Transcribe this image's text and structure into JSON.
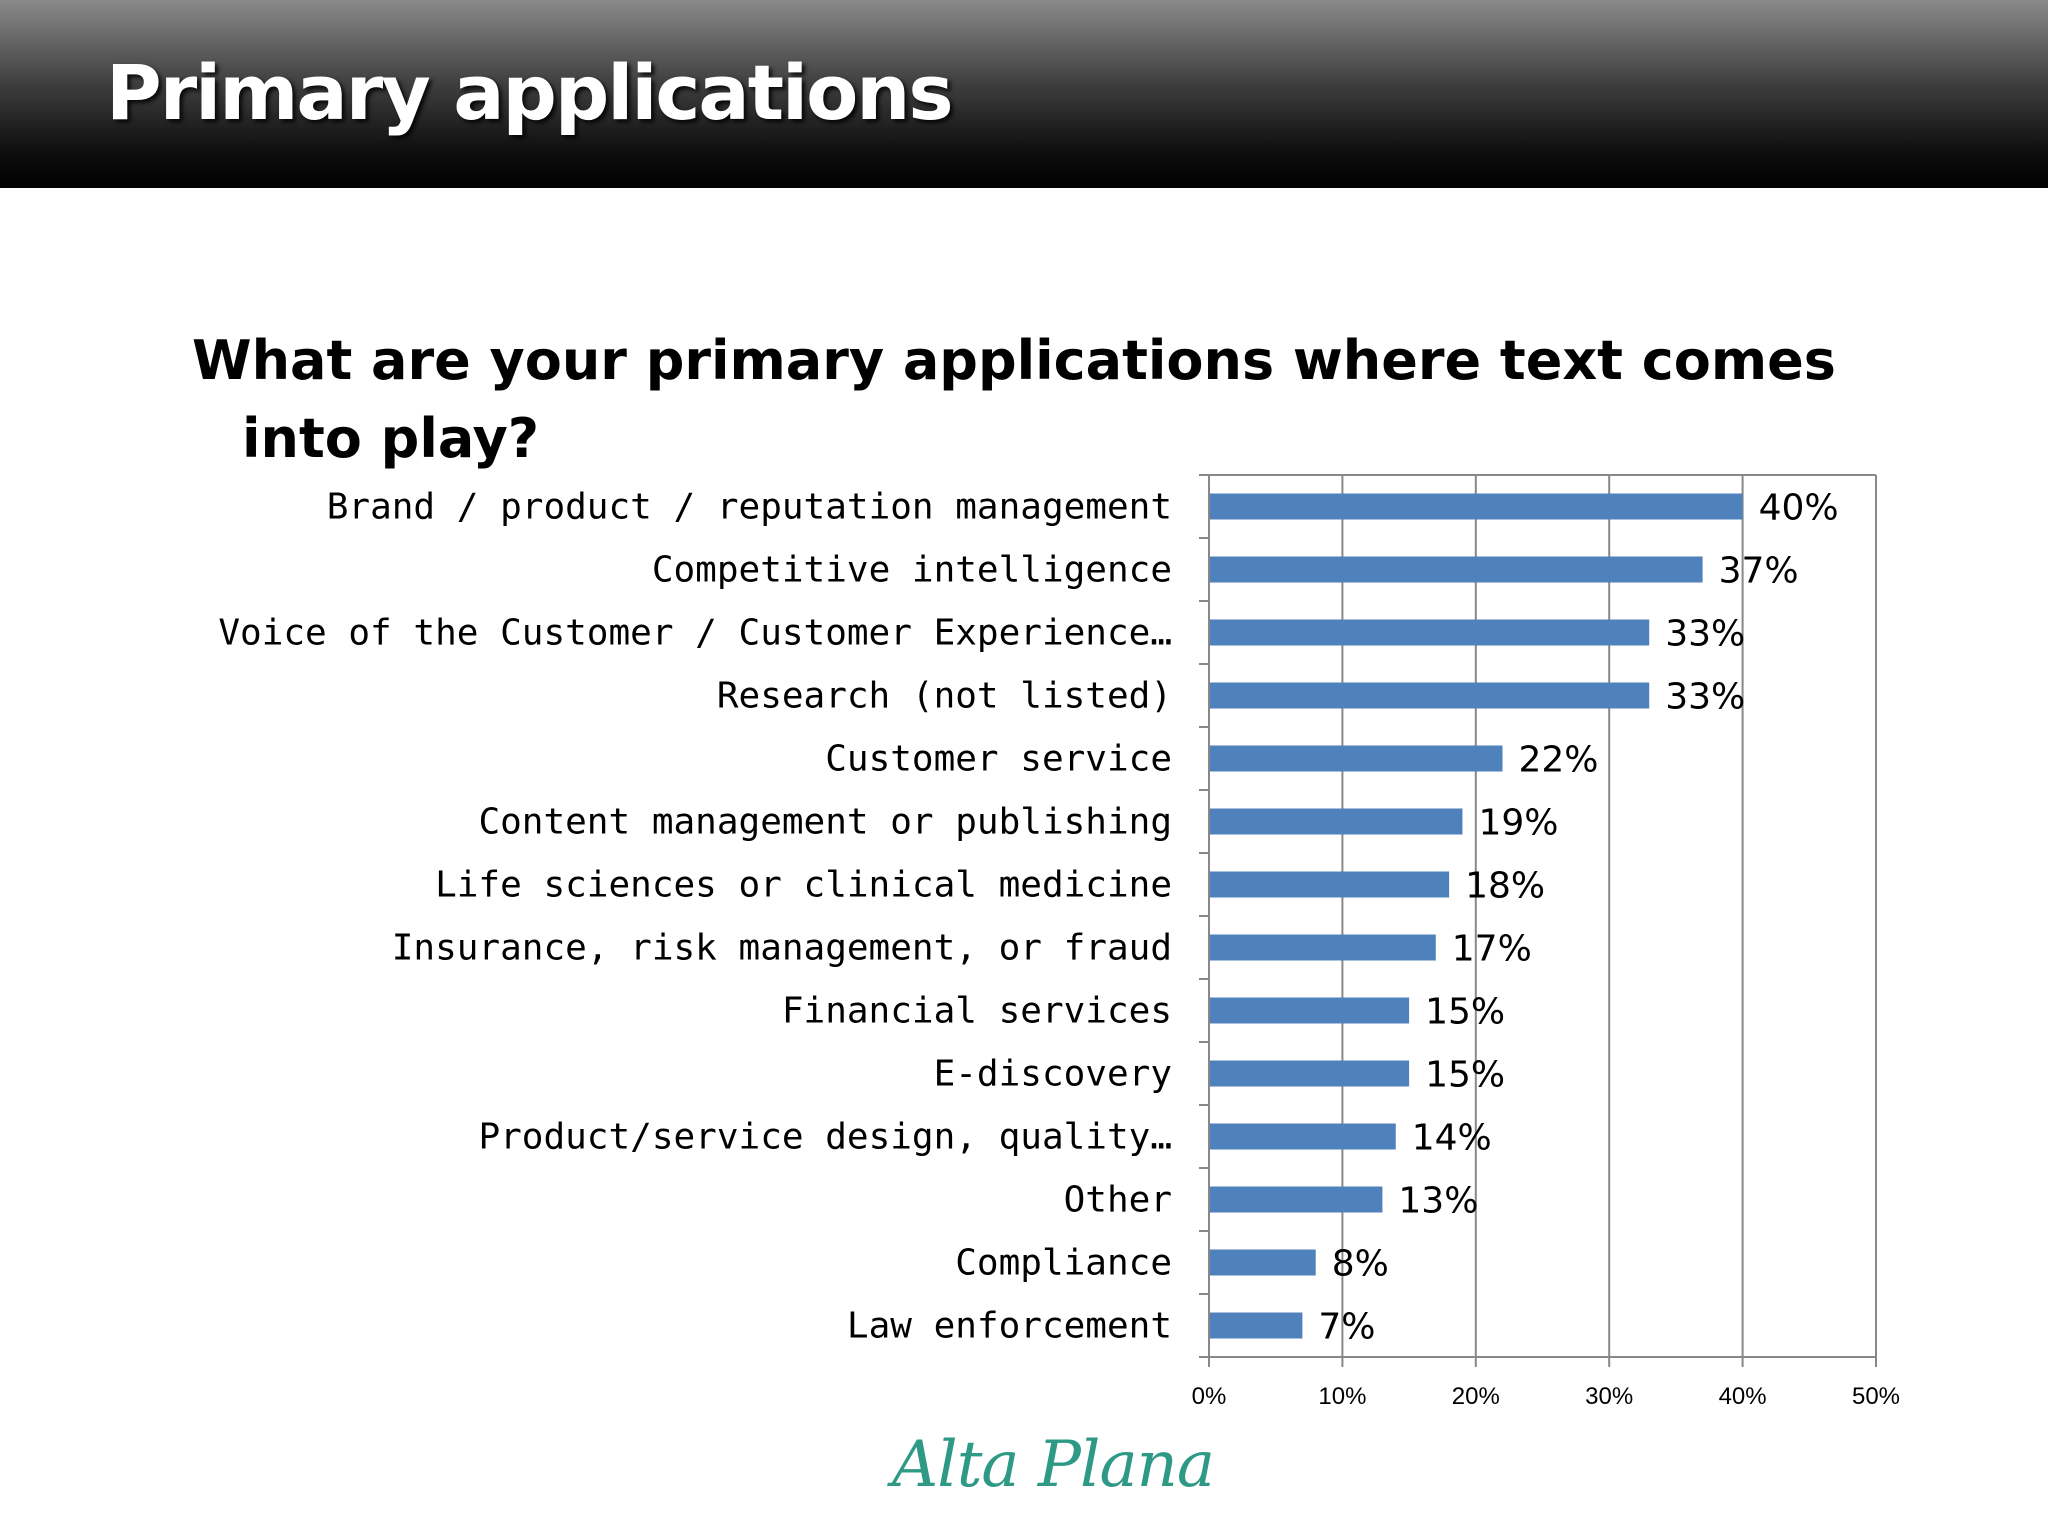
{
  "slide": {
    "title": "Primary applications",
    "question": "What are your primary applications where text comes into play?",
    "logo_text": "Alta Plana"
  },
  "chart_data": {
    "type": "bar",
    "orientation": "horizontal",
    "categories": [
      "Brand / product / reputation management",
      "Competitive intelligence",
      "Voice of the Customer / Customer Experience…",
      "Research (not listed)",
      "Customer service",
      "Content management or publishing",
      "Life sciences or clinical medicine",
      "Insurance, risk management, or fraud",
      "Financial services",
      "E-discovery",
      "Product/service design, quality…",
      "Other",
      "Compliance",
      "Law enforcement"
    ],
    "values": [
      40,
      37,
      33,
      33,
      22,
      19,
      18,
      17,
      15,
      15,
      14,
      13,
      8,
      7
    ],
    "data_labels": [
      "40%",
      "37%",
      "33%",
      "33%",
      "22%",
      "19%",
      "18%",
      "17%",
      "15%",
      "15%",
      "14%",
      "13%",
      "8%",
      "7%"
    ],
    "xlim": [
      0,
      50
    ],
    "x_ticks": [
      0,
      10,
      20,
      30,
      40,
      50
    ],
    "x_tick_labels": [
      "0%",
      "10%",
      "20%",
      "30%",
      "40%",
      "50%"
    ],
    "grid": "vertical",
    "legend": "none",
    "bar_color": "#4f81bd"
  },
  "colors": {
    "grid": "#888888",
    "axis": "#888888"
  }
}
